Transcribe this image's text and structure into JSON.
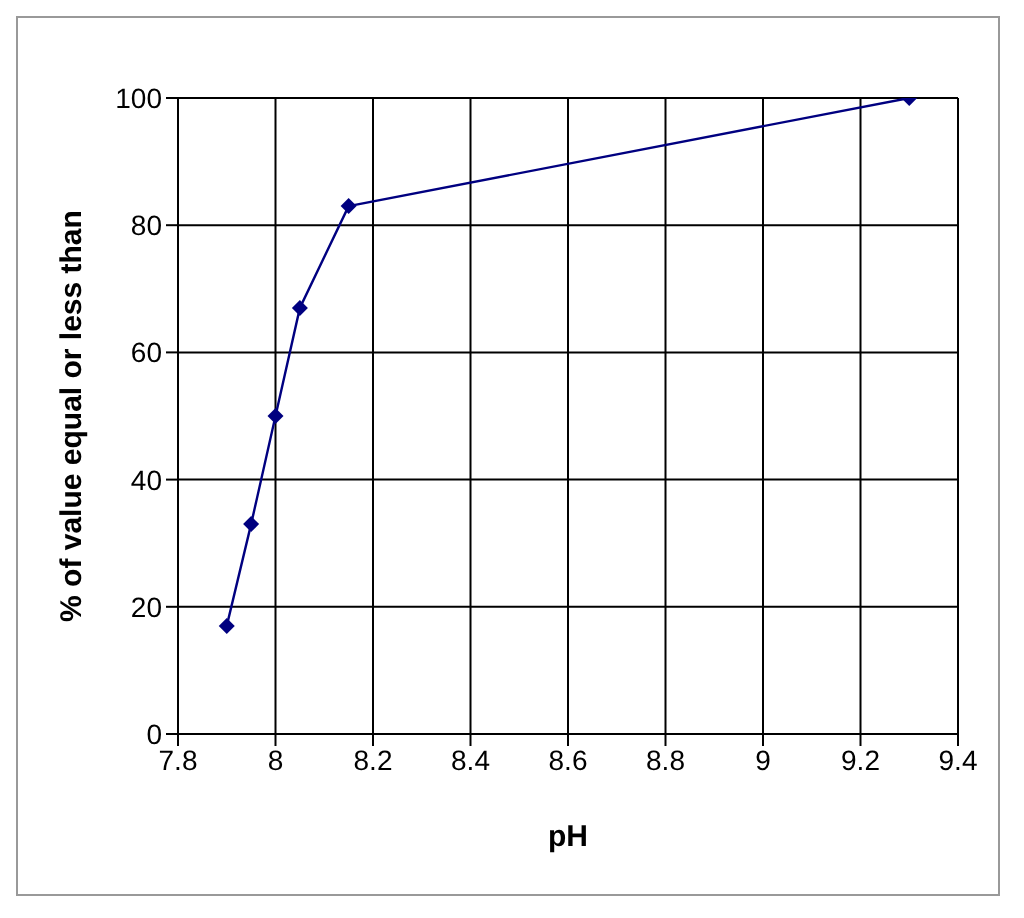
{
  "chart_data": {
    "type": "line",
    "xlabel": "pH",
    "ylabel": "% of value equal or less than",
    "x": [
      7.9,
      7.95,
      8,
      8.05,
      8.15,
      9.3
    ],
    "series": [
      {
        "color": "#000080",
        "values": [
          17,
          33,
          50,
          67,
          83,
          100
        ]
      }
    ],
    "xlim": [
      7.8,
      9.4
    ],
    "xticks": [
      7.8,
      8,
      8.2,
      8.4,
      8.6,
      8.8,
      9,
      9.2,
      9.4
    ],
    "ylim": [
      0,
      100
    ],
    "yticks": [
      0,
      20,
      40,
      60,
      80,
      100
    ],
    "grid": true,
    "legend": false,
    "marker": "diamond",
    "line_style": "solid"
  }
}
